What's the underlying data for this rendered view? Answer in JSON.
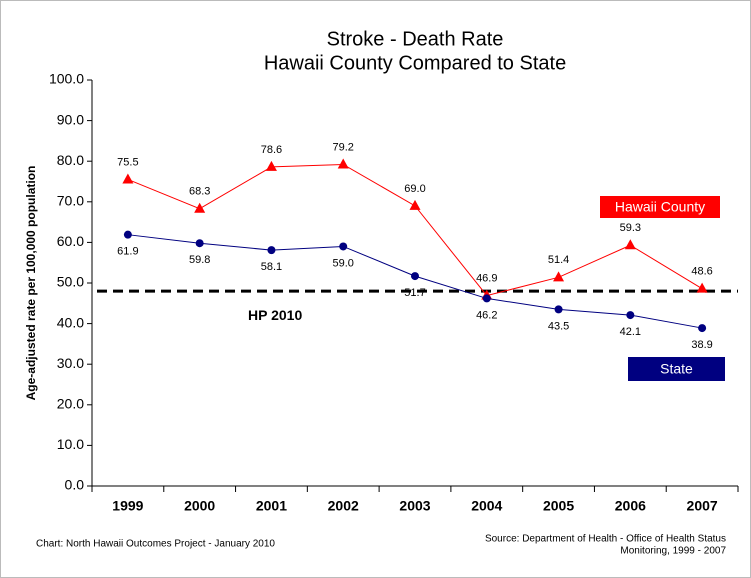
{
  "chart_data": {
    "type": "line",
    "title": "Stroke - Death Rate",
    "subtitle": "Hawaii County Compared to State",
    "y_label": "Age-adjusted rate per 100,000 population",
    "categories": [
      "1999",
      "2000",
      "2001",
      "2002",
      "2003",
      "2004",
      "2005",
      "2006",
      "2007"
    ],
    "series": [
      {
        "name": "Hawaii County",
        "color": "#ff0000",
        "marker": "triangle",
        "values": [
          75.5,
          68.3,
          78.6,
          79.2,
          69.0,
          46.9,
          51.4,
          59.3,
          48.6
        ],
        "value_labels": [
          "75.5",
          "68.3",
          "78.6",
          "79.2",
          "69.0",
          "46.9",
          "51.4",
          "59.3",
          "48.6"
        ]
      },
      {
        "name": "State",
        "color": "#000080",
        "marker": "circle",
        "values": [
          61.9,
          59.8,
          58.1,
          59.0,
          51.7,
          46.2,
          43.5,
          42.1,
          38.9
        ],
        "value_labels": [
          "61.9",
          "59.8",
          "58.1",
          "59.0",
          "51.7",
          "46.2",
          "43.5",
          "42.1",
          "38.9"
        ]
      }
    ],
    "reference_line": {
      "label": "HP 2010",
      "value": 48
    },
    "ylim": [
      0,
      100
    ],
    "yticks": [
      {
        "value": 0,
        "label": "0.0"
      },
      {
        "value": 10,
        "label": "10.0"
      },
      {
        "value": 20,
        "label": "20.0"
      },
      {
        "value": 30,
        "label": "30.0"
      },
      {
        "value": 40,
        "label": "40.0"
      },
      {
        "value": 50,
        "label": "50.0"
      },
      {
        "value": 60,
        "label": "60.0"
      },
      {
        "value": 70,
        "label": "70.0"
      },
      {
        "value": 80,
        "label": "80.0"
      },
      {
        "value": 90,
        "label": "90.0"
      },
      {
        "value": 100,
        "label": "100.0"
      }
    ],
    "grid": false,
    "note": "Chart: North Hawaii Outcomes Project - January 2010",
    "source": [
      "Source: Department of Health - Office of Health Status",
      "Monitoring, 1999 - 2007"
    ]
  }
}
